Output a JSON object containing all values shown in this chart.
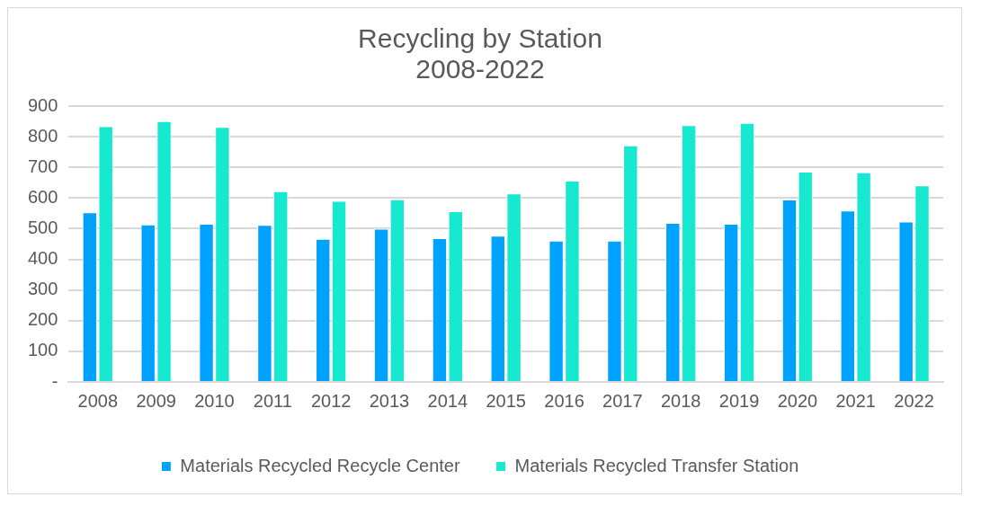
{
  "chart_data": {
    "type": "bar",
    "title": "Recycling by Station",
    "subtitle": "2008-2022",
    "categories": [
      "2008",
      "2009",
      "2010",
      "2011",
      "2012",
      "2013",
      "2014",
      "2015",
      "2016",
      "2017",
      "2018",
      "2019",
      "2020",
      "2021",
      "2022"
    ],
    "series": [
      {
        "name": "Materials Recycled Recycle Center",
        "color": "#00a2ff",
        "values": [
          553,
          514,
          516,
          512,
          467,
          500,
          469,
          477,
          461,
          461,
          519,
          516,
          595,
          559,
          523
        ]
      },
      {
        "name": "Materials Recycled Transfer Station",
        "color": "#17e8d0",
        "values": [
          834,
          851,
          832,
          622,
          591,
          596,
          557,
          615,
          657,
          772,
          838,
          845,
          686,
          684,
          641
        ]
      }
    ],
    "ylim": [
      0,
      900
    ],
    "yticks": [
      {
        "value": 0,
        "label": "-"
      },
      100,
      200,
      300,
      400,
      500,
      600,
      700,
      800,
      900
    ],
    "grid": "y",
    "legend": "bottom"
  }
}
